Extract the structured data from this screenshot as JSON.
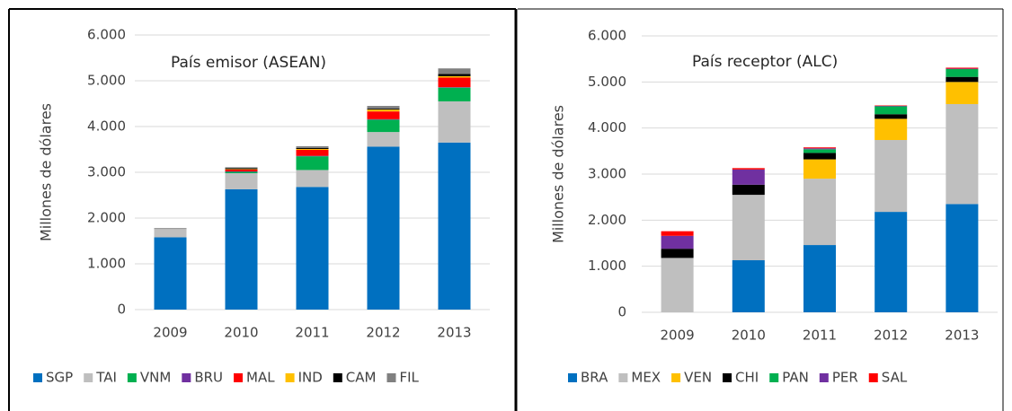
{
  "chart_data": [
    {
      "type": "bar",
      "stacked": true,
      "annotation": "País emisor (ASEAN)",
      "y_label": "Millones de dólares",
      "categories": [
        "2009",
        "2010",
        "2011",
        "2012",
        "2013"
      ],
      "ylim": [
        0,
        6000
      ],
      "yticks": [
        0,
        {
          "value": 1000,
          "label": "1.000"
        },
        {
          "value": 2000,
          "label": "2.000"
        },
        {
          "value": 3000,
          "label": "3.000"
        },
        {
          "value": 4000,
          "label": "4.000"
        },
        {
          "value": 5000,
          "label": "5.000"
        },
        {
          "value": 6000,
          "label": "6.000"
        }
      ],
      "grid": true,
      "series": [
        {
          "name": "SGP",
          "color": "#0070c0",
          "values": [
            1580,
            2630,
            2680,
            3560,
            3650
          ]
        },
        {
          "name": "TAI",
          "color": "#bfbfbf",
          "values": [
            180,
            350,
            370,
            320,
            900
          ]
        },
        {
          "name": "VNM",
          "color": "#00b050",
          "values": [
            0,
            30,
            300,
            270,
            300
          ]
        },
        {
          "name": "BRU",
          "color": "#7030a0",
          "values": [
            0,
            10,
            10,
            10,
            10
          ]
        },
        {
          "name": "MAL",
          "color": "#ff0000",
          "values": [
            0,
            40,
            130,
            170,
            210
          ]
        },
        {
          "name": "IND",
          "color": "#ffc000",
          "values": [
            0,
            10,
            20,
            40,
            30
          ]
        },
        {
          "name": "CAM",
          "color": "#000000",
          "values": [
            0,
            20,
            20,
            20,
            50
          ]
        },
        {
          "name": "FIL",
          "color": "#808080",
          "values": [
            20,
            20,
            40,
            60,
            120
          ]
        }
      ]
    },
    {
      "type": "bar",
      "stacked": true,
      "annotation": "País receptor (ALC)",
      "y_label": "Millones de dólares",
      "categories": [
        "2009",
        "2010",
        "2011",
        "2012",
        "2013"
      ],
      "ylim": [
        0,
        6000
      ],
      "yticks": [
        0,
        {
          "value": 1000,
          "label": "1.000"
        },
        {
          "value": 2000,
          "label": "2.000"
        },
        {
          "value": 3000,
          "label": "3.000"
        },
        {
          "value": 4000,
          "label": "4.000"
        },
        {
          "value": 5000,
          "label": "5.000"
        },
        {
          "value": 6000,
          "label": "6.000"
        }
      ],
      "grid": true,
      "series": [
        {
          "name": "BRA",
          "color": "#0070c0",
          "values": [
            0,
            1130,
            1460,
            2180,
            2350
          ]
        },
        {
          "name": "MEX",
          "color": "#bfbfbf",
          "values": [
            1180,
            1420,
            1440,
            1560,
            2170
          ]
        },
        {
          "name": "VEN",
          "color": "#ffc000",
          "values": [
            0,
            0,
            420,
            460,
            480
          ]
        },
        {
          "name": "CHI",
          "color": "#000000",
          "values": [
            200,
            220,
            140,
            100,
            110
          ]
        },
        {
          "name": "PAN",
          "color": "#00b050",
          "values": [
            0,
            0,
            80,
            170,
            170
          ]
        },
        {
          "name": "PER",
          "color": "#7030a0",
          "values": [
            280,
            330,
            20,
            10,
            10
          ]
        },
        {
          "name": "SAL",
          "color": "#ff0000",
          "values": [
            100,
            30,
            20,
            10,
            20
          ]
        }
      ]
    }
  ]
}
